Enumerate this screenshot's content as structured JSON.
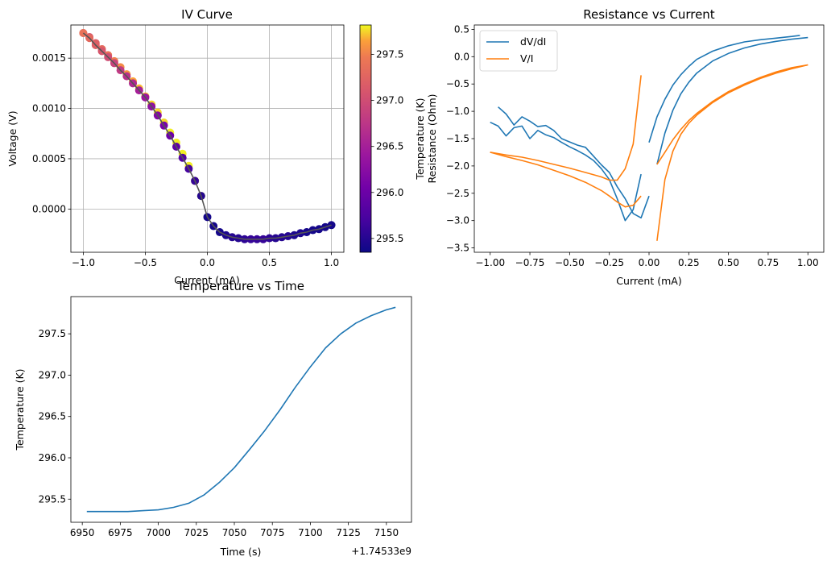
{
  "chart_data": [
    {
      "id": "iv",
      "type": "scatter",
      "title": "IV Curve",
      "xlabel": "Current (mA)",
      "ylabel": "Voltage (V)",
      "xlim": [
        -1.1,
        1.1
      ],
      "ylim": [
        -0.00043,
        0.00183
      ],
      "xticks": [
        -1.0,
        -0.5,
        0.0,
        0.5,
        1.0
      ],
      "xtick_labels": [
        "−1.0",
        "−0.5",
        "0.0",
        "0.5",
        "1.0"
      ],
      "yticks": [
        0.0,
        0.0005,
        0.001,
        0.0015
      ],
      "ytick_labels": [
        "0.0000",
        "0.0005",
        "0.0010",
        "0.0015"
      ],
      "grid": true,
      "colormap": "plasma",
      "colorbar": {
        "label": "Temperature (K)",
        "range": [
          295.35,
          297.82
        ],
        "ticks": [
          295.5,
          296.0,
          296.5,
          297.0,
          297.5
        ],
        "tick_labels": [
          "295.5",
          "296.0",
          "296.5",
          "297.0",
          "297.5"
        ]
      },
      "fit_line_color": "#555555",
      "series": [
        {
          "x": [
            -1.0,
            -0.95,
            -0.9,
            -0.85,
            -0.8,
            -0.75,
            -0.7,
            -0.65,
            -0.6,
            -0.55,
            -0.5,
            -0.45,
            -0.4,
            -0.35,
            -0.3,
            -0.25,
            -0.2,
            -0.15,
            -0.1,
            -0.05,
            0.0,
            0.05,
            0.1,
            0.15,
            0.2,
            0.25,
            0.3,
            0.35,
            0.4,
            0.45,
            0.5,
            0.55,
            0.6,
            0.65,
            0.7,
            0.75,
            0.8,
            0.85,
            0.9,
            0.95,
            1.0
          ],
          "y": [
            0.00175,
            0.0017,
            0.00163,
            0.00157,
            0.00151,
            0.00145,
            0.00138,
            0.00132,
            0.00125,
            0.00118,
            0.00111,
            0.00102,
            0.00093,
            0.00083,
            0.00073,
            0.00062,
            0.00051,
            0.0004,
            0.00028,
            0.00013,
            -8e-05,
            -0.00017,
            -0.00023,
            -0.00026,
            -0.00028,
            -0.00029,
            -0.0003,
            -0.0003,
            -0.0003,
            -0.0003,
            -0.00029,
            -0.00029,
            -0.00028,
            -0.00027,
            -0.00026,
            -0.00024,
            -0.00023,
            -0.00021,
            -0.0002,
            -0.00018,
            -0.00016
          ],
          "temperature": [
            297.4,
            297.3,
            297.2,
            297.1,
            297.0,
            296.9,
            296.8,
            296.7,
            296.6,
            296.5,
            296.4,
            296.3,
            296.2,
            296.1,
            296.0,
            295.9,
            295.8,
            295.7,
            295.6,
            295.5,
            295.4,
            295.4,
            295.4,
            295.45,
            295.5,
            295.5,
            295.55,
            295.6,
            295.6,
            295.6,
            295.55,
            295.5,
            295.5,
            295.5,
            295.45,
            295.45,
            295.4,
            295.4,
            295.4,
            295.4,
            295.4
          ],
          "overlay_x": [
            -1.0,
            -0.95,
            -0.9,
            -0.85,
            -0.8,
            -0.75,
            -0.7,
            -0.65,
            -0.6,
            -0.55,
            -0.5,
            -0.45,
            -0.4,
            -0.35,
            -0.3,
            -0.25,
            -0.2,
            -0.15,
            -0.1,
            -0.05
          ],
          "overlay_y": [
            0.00175,
            0.00171,
            0.00165,
            0.00159,
            0.00153,
            0.00147,
            0.00141,
            0.00134,
            0.00127,
            0.0012,
            0.00112,
            0.00104,
            0.00096,
            0.00086,
            0.00076,
            0.00066,
            0.00055,
            0.00043,
            0.00028,
            0.00013
          ],
          "overlay_temperature": [
            297.0,
            297.1,
            297.2,
            297.3,
            297.4,
            297.5,
            297.55,
            297.6,
            297.65,
            297.7,
            297.7,
            297.75,
            297.75,
            297.75,
            297.8,
            297.8,
            297.8,
            297.8,
            297.8,
            297.8
          ]
        }
      ]
    },
    {
      "id": "rc",
      "type": "line",
      "title": "Resistance vs Current",
      "xlabel": "Current (mA)",
      "ylabel": "Resistance (Ohm)",
      "xlim": [
        -1.1,
        1.1
      ],
      "ylim": [
        -3.58,
        0.58
      ],
      "xticks": [
        -1.0,
        -0.75,
        -0.5,
        -0.25,
        0.0,
        0.25,
        0.5,
        0.75,
        1.0
      ],
      "xtick_labels": [
        "−1.00",
        "−0.75",
        "−0.50",
        "−0.25",
        "0.00",
        "0.25",
        "0.50",
        "0.75",
        "1.00"
      ],
      "yticks": [
        -3.5,
        -3.0,
        -2.5,
        -2.0,
        -1.5,
        -1.0,
        -0.5,
        0.0,
        0.5
      ],
      "ytick_labels": [
        "−3.5",
        "−3.0",
        "−2.5",
        "−2.0",
        "−1.5",
        "−1.0",
        "−0.5",
        "0.0",
        "0.5"
      ],
      "grid": false,
      "legend": "upper-left",
      "series": [
        {
          "name": "dV/dI",
          "color": "#1f77b4",
          "segments": [
            {
              "x": [
                -1.0,
                -0.95,
                -0.9,
                -0.85,
                -0.8,
                -0.75,
                -0.7,
                -0.65,
                -0.6,
                -0.55,
                -0.5,
                -0.45,
                -0.4,
                -0.35,
                -0.3,
                -0.25,
                -0.2,
                -0.15,
                -0.1,
                -0.05
              ],
              "y": [
                -1.2,
                -1.27,
                -1.45,
                -1.3,
                -1.27,
                -1.5,
                -1.35,
                -1.43,
                -1.48,
                -1.57,
                -1.65,
                -1.72,
                -1.8,
                -1.9,
                -2.05,
                -2.25,
                -2.6,
                -3.0,
                -2.8,
                -2.15
              ]
            },
            {
              "x": [
                -0.95,
                -0.9,
                -0.85,
                -0.8,
                -0.75,
                -0.7,
                -0.65,
                -0.6,
                -0.55,
                -0.5,
                -0.45,
                -0.4,
                -0.35,
                -0.3,
                -0.25,
                -0.2,
                -0.15,
                -0.1,
                -0.05,
                0.0
              ],
              "y": [
                -0.92,
                -1.05,
                -1.25,
                -1.1,
                -1.18,
                -1.28,
                -1.26,
                -1.35,
                -1.5,
                -1.56,
                -1.62,
                -1.66,
                -1.82,
                -1.98,
                -2.12,
                -2.38,
                -2.6,
                -2.87,
                -2.95,
                -2.55
              ]
            },
            {
              "x": [
                0.0,
                0.05,
                0.1,
                0.15,
                0.2,
                0.25,
                0.3,
                0.4,
                0.5,
                0.6,
                0.7,
                0.8,
                0.9,
                0.95
              ],
              "y": [
                -1.57,
                -1.1,
                -0.78,
                -0.52,
                -0.33,
                -0.18,
                -0.05,
                0.1,
                0.2,
                0.27,
                0.31,
                0.34,
                0.37,
                0.39
              ]
            },
            {
              "x": [
                0.05,
                0.1,
                0.15,
                0.2,
                0.25,
                0.3,
                0.4,
                0.5,
                0.6,
                0.7,
                0.8,
                0.9,
                1.0
              ],
              "y": [
                -1.97,
                -1.4,
                -0.98,
                -0.68,
                -0.47,
                -0.3,
                -0.08,
                0.06,
                0.16,
                0.23,
                0.28,
                0.32,
                0.35
              ]
            }
          ]
        },
        {
          "name": "V/I",
          "color": "#ff7f0e",
          "segments": [
            {
              "x": [
                -1.0,
                -0.9,
                -0.8,
                -0.7,
                -0.6,
                -0.5,
                -0.4,
                -0.3,
                -0.25,
                -0.2,
                -0.15,
                -0.1,
                -0.05
              ],
              "y": [
                -1.75,
                -1.8,
                -1.84,
                -1.9,
                -1.97,
                -2.04,
                -2.12,
                -2.2,
                -2.26,
                -2.26,
                -2.05,
                -1.6,
                -0.34
              ]
            },
            {
              "x": [
                -1.0,
                -0.9,
                -0.8,
                -0.7,
                -0.6,
                -0.5,
                -0.4,
                -0.3,
                -0.25,
                -0.2,
                -0.15,
                -0.1,
                -0.05
              ],
              "y": [
                -1.75,
                -1.83,
                -1.9,
                -1.98,
                -2.08,
                -2.18,
                -2.3,
                -2.45,
                -2.55,
                -2.66,
                -2.75,
                -2.72,
                -2.55
              ]
            },
            {
              "x": [
                0.05,
                0.1,
                0.15,
                0.2,
                0.25,
                0.3,
                0.4,
                0.5,
                0.6,
                0.7,
                0.8,
                0.9,
                1.0
              ],
              "y": [
                -1.97,
                -1.75,
                -1.52,
                -1.33,
                -1.17,
                -1.04,
                -0.82,
                -0.64,
                -0.5,
                -0.38,
                -0.28,
                -0.2,
                -0.15
              ]
            },
            {
              "x": [
                0.05,
                0.1,
                0.15,
                0.2,
                0.25,
                0.3,
                0.4,
                0.5,
                0.6,
                0.7,
                0.8,
                0.9,
                1.0
              ],
              "y": [
                -3.37,
                -2.25,
                -1.73,
                -1.42,
                -1.22,
                -1.07,
                -0.84,
                -0.66,
                -0.52,
                -0.4,
                -0.3,
                -0.22,
                -0.15
              ]
            }
          ]
        }
      ]
    },
    {
      "id": "tt",
      "type": "line",
      "title": "Temperature vs Time",
      "xlabel": "Time (s)",
      "ylabel": "Temperature (K)",
      "offset_label": "+1.74533e9",
      "xlim": [
        6942.5,
        7166.5
      ],
      "ylim": [
        295.22,
        297.95
      ],
      "xticks": [
        6950,
        6975,
        7000,
        7025,
        7050,
        7075,
        7100,
        7125,
        7150
      ],
      "xtick_labels": [
        "6950",
        "6975",
        "7000",
        "7025",
        "7050",
        "7075",
        "7100",
        "7125",
        "7150"
      ],
      "yticks": [
        295.5,
        296.0,
        296.5,
        297.0,
        297.5
      ],
      "ytick_labels": [
        "295.5",
        "296.0",
        "296.5",
        "297.0",
        "297.5"
      ],
      "grid": false,
      "series": [
        {
          "color": "#1f77b4",
          "x": [
            6953,
            6960,
            6970,
            6980,
            6990,
            7000,
            7010,
            7020,
            7030,
            7040,
            7050,
            7060,
            7070,
            7080,
            7090,
            7100,
            7110,
            7120,
            7130,
            7140,
            7150,
            7156
          ],
          "y": [
            295.35,
            295.35,
            295.35,
            295.35,
            295.36,
            295.37,
            295.4,
            295.45,
            295.55,
            295.7,
            295.88,
            296.1,
            296.33,
            296.58,
            296.85,
            297.1,
            297.33,
            297.5,
            297.63,
            297.72,
            297.79,
            297.82
          ]
        }
      ]
    }
  ]
}
